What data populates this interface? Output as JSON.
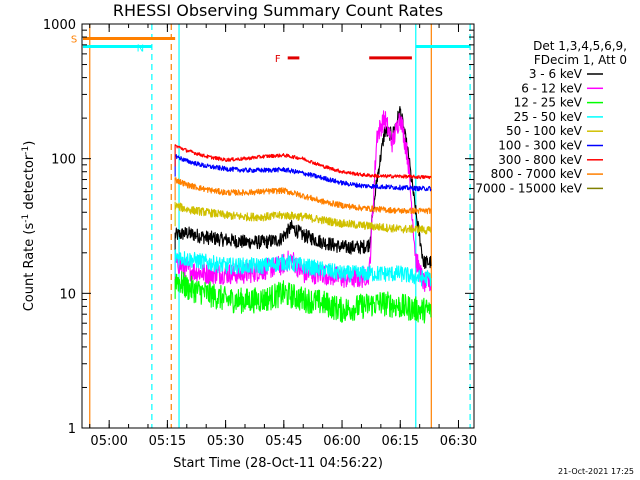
{
  "chart_data": {
    "type": "line",
    "title": "RHESSI Observing Summary Count Rates",
    "xlabel": "Start Time (28-Oct-11 04:56:22)",
    "ylabel_main": "Count Rate (s",
    "ylabel_sup1": "-1",
    "ylabel_mid": " detector",
    "ylabel_sup2": "-1",
    "ylabel_end": ")",
    "yscale": "log",
    "ylim": [
      1,
      1000
    ],
    "xlim": [
      "04:53",
      "06:34"
    ],
    "x_ticks": [
      "05:00",
      "05:15",
      "05:30",
      "05:45",
      "06:00",
      "06:15",
      "06:30"
    ],
    "y_ticks": [
      "1",
      "10",
      "100",
      "1000"
    ],
    "legend_header": [
      "Det 1,3,4,5,6,9,",
      "FDecim 1, Att 0"
    ],
    "legend_placement": "right",
    "timestamp": "21-Oct-2021 17:25",
    "series": [
      {
        "name": "3 - 6 keV",
        "color": "#000000",
        "x": [
          "05:17",
          "05:20",
          "05:25",
          "05:30",
          "05:35",
          "05:40",
          "05:44",
          "05:47",
          "05:50",
          "05:55",
          "06:00",
          "06:05",
          "06:07",
          "06:09",
          "06:11",
          "06:13",
          "06:15",
          "06:17",
          "06:19",
          "06:21",
          "06:23"
        ],
        "values": [
          27,
          28,
          26,
          25,
          24,
          24,
          25,
          31,
          27,
          24,
          22,
          22,
          23,
          70,
          160,
          150,
          230,
          110,
          40,
          17,
          17
        ]
      },
      {
        "name": "6 - 12 keV",
        "color": "#ff00ff",
        "x": [
          "05:17",
          "05:20",
          "05:25",
          "05:30",
          "05:35",
          "05:40",
          "05:44",
          "05:47",
          "05:50",
          "05:55",
          "06:00",
          "06:05",
          "06:07",
          "06:09",
          "06:11",
          "06:13",
          "06:15",
          "06:17",
          "06:19",
          "06:21",
          "06:23"
        ],
        "values": [
          17,
          15,
          14,
          14,
          14,
          15,
          16,
          18,
          14,
          14,
          13,
          13,
          14,
          150,
          200,
          130,
          210,
          100,
          18,
          12,
          12
        ]
      },
      {
        "name": "12 - 25 keV",
        "color": "#00ff00",
        "x": [
          "05:17",
          "05:20",
          "05:25",
          "05:30",
          "05:35",
          "05:40",
          "05:45",
          "05:50",
          "05:55",
          "06:00",
          "06:05",
          "06:10",
          "06:15",
          "06:20",
          "06:23"
        ],
        "values": [
          13,
          11,
          10,
          9,
          8.8,
          9,
          10,
          9,
          8.5,
          7.5,
          8,
          8.5,
          8,
          7.5,
          7.5
        ]
      },
      {
        "name": "25 - 50 keV",
        "color": "#00ffff",
        "x": [
          "05:17",
          "05:20",
          "05:25",
          "05:30",
          "05:35",
          "05:40",
          "05:45",
          "05:50",
          "05:55",
          "06:00",
          "06:05",
          "06:10",
          "06:15",
          "06:20",
          "06:23"
        ],
        "values": [
          19,
          18,
          17,
          16,
          16,
          16,
          17,
          16,
          15,
          14,
          14,
          14,
          14,
          13,
          13
        ]
      },
      {
        "name": "50 - 100 keV",
        "color": "#d0c000",
        "x": [
          "05:17",
          "05:20",
          "05:25",
          "05:30",
          "05:35",
          "05:40",
          "05:45",
          "05:50",
          "05:55",
          "06:00",
          "06:05",
          "06:10",
          "06:15",
          "06:20",
          "06:23"
        ],
        "values": [
          45,
          42,
          40,
          38,
          37,
          37,
          38,
          37,
          35,
          33,
          32,
          31,
          30,
          30,
          29
        ]
      },
      {
        "name": "100 - 300 keV",
        "color": "#0000ff",
        "x": [
          "05:17",
          "05:20",
          "05:25",
          "05:30",
          "05:35",
          "05:40",
          "05:45",
          "05:50",
          "05:55",
          "06:00",
          "06:05",
          "06:10",
          "06:15",
          "06:20",
          "06:23"
        ],
        "values": [
          105,
          96,
          88,
          84,
          82,
          82,
          83,
          78,
          72,
          66,
          63,
          62,
          61,
          60,
          60
        ]
      },
      {
        "name": "300 - 800 keV",
        "color": "#ff0000",
        "x": [
          "05:17",
          "05:20",
          "05:25",
          "05:30",
          "05:35",
          "05:40",
          "05:45",
          "05:50",
          "05:55",
          "06:00",
          "06:05",
          "06:10",
          "06:15",
          "06:20",
          "06:23"
        ],
        "values": [
          125,
          115,
          104,
          98,
          100,
          104,
          106,
          100,
          88,
          80,
          76,
          74,
          74,
          73,
          73
        ]
      },
      {
        "name": "800 - 7000 keV",
        "color": "#ff8000",
        "x": [
          "05:17",
          "05:20",
          "05:25",
          "05:30",
          "05:35",
          "05:40",
          "05:45",
          "05:50",
          "05:55",
          "06:00",
          "06:05",
          "06:10",
          "06:15",
          "06:20",
          "06:23"
        ],
        "values": [
          70,
          64,
          59,
          56,
          56,
          57,
          58,
          53,
          48,
          45,
          43,
          42,
          41,
          41,
          41
        ]
      },
      {
        "name": "7000 - 15000 keV",
        "color": "#808000",
        "x": [],
        "values": []
      }
    ],
    "annotations": {
      "S_label": "S",
      "N_label": "N",
      "F_label": "F",
      "S_bar": {
        "x": [
          "04:53",
          "05:17"
        ],
        "y": 780,
        "color": "#ff8000"
      },
      "N_bar_left": {
        "x": [
          "04:53",
          "05:11"
        ],
        "y": 680,
        "color": "#00ffff"
      },
      "N_bar_right": {
        "x": [
          "06:19",
          "06:33"
        ],
        "y": 680,
        "color": "#00ffff"
      },
      "F_bars": [
        {
          "x": [
            "05:46",
            "05:49"
          ],
          "y": 560
        },
        {
          "x": [
            "06:07",
            "06:18"
          ],
          "y": 560
        }
      ],
      "vlines": [
        {
          "x": "04:55",
          "color": "#ff8000",
          "style": "solid"
        },
        {
          "x": "05:11",
          "color": "#00ffff",
          "style": "dashed"
        },
        {
          "x": "05:16",
          "color": "#ff8000",
          "style": "dashed"
        },
        {
          "x": "05:18",
          "color": "#00ffff",
          "style": "solid"
        },
        {
          "x": "06:19",
          "color": "#00ffff",
          "style": "solid"
        },
        {
          "x": "06:23",
          "color": "#ff8000",
          "style": "solid"
        },
        {
          "x": "06:33",
          "color": "#00ffff",
          "style": "dashed"
        }
      ]
    }
  }
}
